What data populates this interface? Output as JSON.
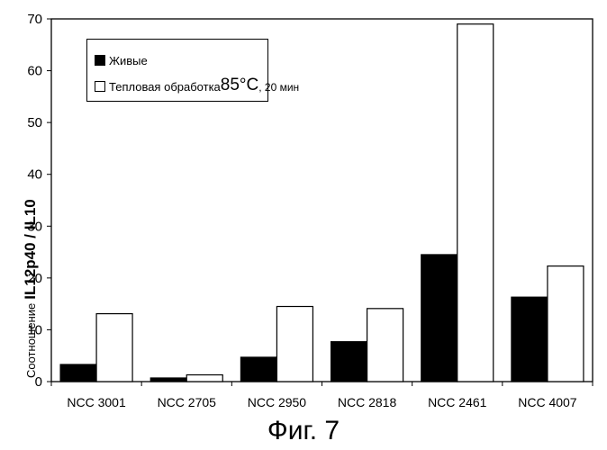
{
  "chart_data": {
    "type": "bar",
    "title": "",
    "xlabel": "",
    "ylabel_prefix": "Соотношение",
    "ylabel_main": "IL12p40 / IL10",
    "ylim": [
      0,
      70
    ],
    "yticks": [
      0,
      10,
      20,
      30,
      40,
      50,
      60,
      70
    ],
    "grid": false,
    "legend_position": "top-left",
    "categories": [
      "NCC 3001",
      "NCC 2705",
      "NCC 2950",
      "NCC 2818",
      "NCC 2461",
      "NCC 4007"
    ],
    "series": [
      {
        "name": "Живые",
        "color": "#000000",
        "values": [
          3.3,
          0.7,
          4.7,
          7.7,
          24.5,
          16.3
        ]
      },
      {
        "name": "Тепловая обработка 85°C, 20 мин",
        "color": "#ffffff",
        "values": [
          13.1,
          1.3,
          14.5,
          14.1,
          69.0,
          22.3
        ]
      }
    ]
  },
  "legend": {
    "live_label": "Живые",
    "heat_label_prefix": "Тепловая обработка ",
    "heat_label_temp": "85°C",
    "heat_label_suffix": ", 20 мин"
  },
  "caption": "Фиг. 7"
}
